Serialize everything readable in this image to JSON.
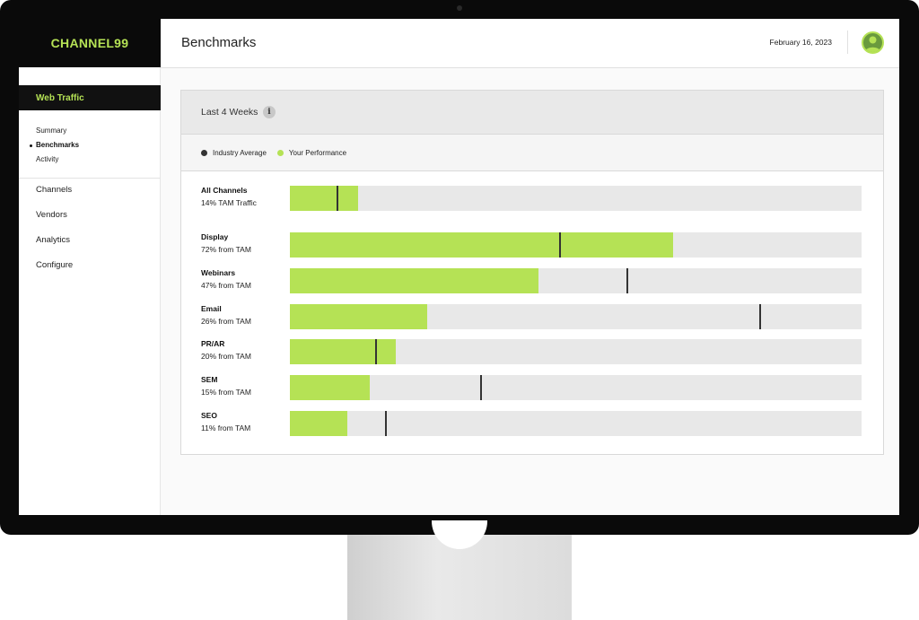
{
  "brand": {
    "name": "CHANNEL99"
  },
  "sidebar": {
    "section": "Web Traffic",
    "subnav": [
      {
        "label": "Summary",
        "active": false
      },
      {
        "label": "Benchmarks",
        "active": true
      },
      {
        "label": "Activity",
        "active": false
      }
    ],
    "nav": [
      {
        "label": "Channels"
      },
      {
        "label": "Vendors"
      },
      {
        "label": "Analytics"
      },
      {
        "label": "Configure"
      }
    ]
  },
  "header": {
    "title": "Benchmarks",
    "date": "February 16, 2023"
  },
  "card": {
    "period": "Last 4 Weeks",
    "info_glyph": "i",
    "legend": [
      {
        "label": "Industry Average",
        "color": "#333333"
      },
      {
        "label": "Your Performance",
        "color": "#b5e255"
      }
    ]
  },
  "chart_data": {
    "type": "bar",
    "orientation": "horizontal",
    "series": [
      {
        "name": "Your Performance",
        "values": [
          0.12,
          0.67,
          0.435,
          0.24,
          0.185,
          0.14,
          0.1
        ]
      },
      {
        "name": "Industry Average",
        "values": [
          0.083,
          0.472,
          0.59,
          0.822,
          0.15,
          0.335,
          0.168
        ]
      }
    ],
    "rows": [
      {
        "name": "All Channels",
        "sub": "14% TAM Traffic"
      },
      {
        "name": "Display",
        "sub": "72% from TAM"
      },
      {
        "name": "Webinars",
        "sub": "47% from TAM"
      },
      {
        "name": "Email",
        "sub": "26% from TAM"
      },
      {
        "name": "PR/AR",
        "sub": "20% from TAM"
      },
      {
        "name": "SEM",
        "sub": "15% from TAM"
      },
      {
        "name": "SEO",
        "sub": "11% from TAM"
      }
    ],
    "xlim": [
      0,
      1
    ]
  }
}
